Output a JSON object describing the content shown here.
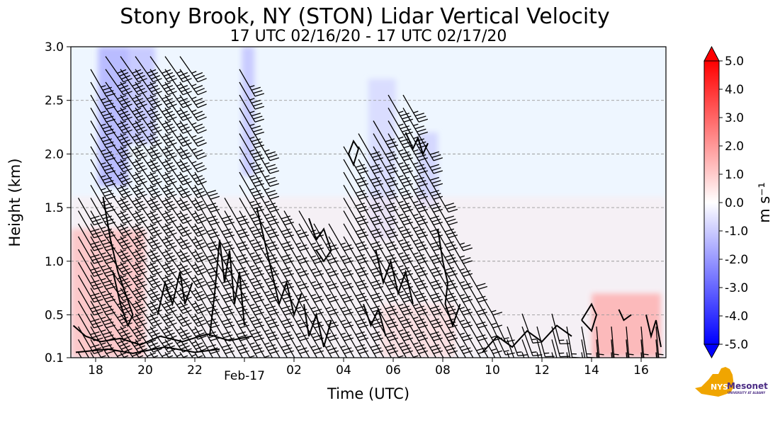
{
  "chart_data": {
    "type": "heatmap",
    "title": "Stony Brook, NY (STON) Lidar Vertical Velocity",
    "subtitle": "17 UTC 02/16/20 - 17 UTC 02/17/20",
    "xlabel": "Time (UTC)",
    "ylabel": "Height (km)",
    "x_range_hours": [
      17,
      41
    ],
    "x_ticks": [
      {
        "hour": 18,
        "label": "18"
      },
      {
        "hour": 20,
        "label": "20"
      },
      {
        "hour": 22,
        "label": "22"
      },
      {
        "hour": 24,
        "label": "Feb-17"
      },
      {
        "hour": 26,
        "label": "02"
      },
      {
        "hour": 28,
        "label": "04"
      },
      {
        "hour": 30,
        "label": "06"
      },
      {
        "hour": 32,
        "label": "08"
      },
      {
        "hour": 34,
        "label": "10"
      },
      {
        "hour": 36,
        "label": "12"
      },
      {
        "hour": 38,
        "label": "14"
      },
      {
        "hour": 40,
        "label": "16"
      }
    ],
    "y_range_km": [
      0.1,
      3.0
    ],
    "y_ticks": [
      {
        "value": 0.1,
        "label": "0.1"
      },
      {
        "value": 0.5,
        "label": "0.5"
      },
      {
        "value": 1.0,
        "label": "1.0"
      },
      {
        "value": 1.5,
        "label": "1.5"
      },
      {
        "value": 2.0,
        "label": "2.0"
      },
      {
        "value": 2.5,
        "label": "2.5"
      },
      {
        "value": 3.0,
        "label": "3.0"
      }
    ],
    "grid": "horizontal dashed",
    "colorbar": {
      "label": "m s⁻¹",
      "range": [
        -5.0,
        5.0
      ],
      "ticks": [
        "5.0",
        "4.0",
        "3.0",
        "2.0",
        "1.0",
        "0.0",
        "-1.0",
        "-2.0",
        "-3.0",
        "-4.0",
        "-5.0"
      ],
      "colors": [
        "#0000ff",
        "#7f7fff",
        "#ffffff",
        "#ff7f7f",
        "#ff0000"
      ]
    },
    "field_regions": [
      {
        "t0": 18.1,
        "t1": 19.3,
        "z0": 1.7,
        "z1": 3.0,
        "w": -0.6
      },
      {
        "t0": 19.2,
        "t1": 20.4,
        "z0": 2.1,
        "z1": 3.0,
        "w": -0.5
      },
      {
        "t0": 23.9,
        "t1": 24.4,
        "z0": 1.8,
        "z1": 3.0,
        "w": -0.5
      },
      {
        "t0": 29.0,
        "t1": 30.1,
        "z0": 1.2,
        "z1": 2.7,
        "w": -0.35
      },
      {
        "t0": 31.0,
        "t1": 31.8,
        "z0": 1.5,
        "z1": 2.2,
        "w": -0.4
      },
      {
        "t0": 17.0,
        "t1": 41.0,
        "z0": 0.1,
        "z1": 1.6,
        "w": 0.15
      },
      {
        "t0": 17.0,
        "t1": 20.0,
        "z0": 0.1,
        "z1": 1.3,
        "w": 0.5
      },
      {
        "t0": 38.0,
        "t1": 40.8,
        "z0": 0.1,
        "z1": 0.7,
        "w": 0.6
      },
      {
        "t0": 29.5,
        "t1": 32.5,
        "z0": 0.1,
        "z1": 0.6,
        "w": 0.3
      }
    ],
    "barb_columns": [
      {
        "t": 17.3,
        "z_top": 1.6,
        "spd": 30,
        "bearing": 150
      },
      {
        "t": 17.8,
        "z_top": 2.9,
        "spd": 35,
        "bearing": 150
      },
      {
        "t": 18.4,
        "z_top": 3.0,
        "spd": 40,
        "bearing": 145
      },
      {
        "t": 19.0,
        "z_top": 3.0,
        "spd": 40,
        "bearing": 145
      },
      {
        "t": 19.6,
        "z_top": 3.0,
        "spd": 40,
        "bearing": 145
      },
      {
        "t": 20.2,
        "z_top": 3.0,
        "spd": 40,
        "bearing": 145
      },
      {
        "t": 20.8,
        "z_top": 3.0,
        "spd": 35,
        "bearing": 145
      },
      {
        "t": 21.4,
        "z_top": 3.0,
        "spd": 35,
        "bearing": 145
      },
      {
        "t": 22.0,
        "z_top": 1.9,
        "spd": 30,
        "bearing": 150
      },
      {
        "t": 22.6,
        "z_top": 1.7,
        "spd": 30,
        "bearing": 150
      },
      {
        "t": 23.2,
        "z_top": 1.7,
        "spd": 30,
        "bearing": 150
      },
      {
        "t": 23.8,
        "z_top": 2.9,
        "spd": 35,
        "bearing": 150
      },
      {
        "t": 24.4,
        "z_top": 2.3,
        "spd": 35,
        "bearing": 150
      },
      {
        "t": 25.0,
        "z_top": 1.6,
        "spd": 30,
        "bearing": 150
      },
      {
        "t": 25.6,
        "z_top": 1.5,
        "spd": 25,
        "bearing": 150
      },
      {
        "t": 26.2,
        "z_top": 1.5,
        "spd": 25,
        "bearing": 150
      },
      {
        "t": 26.8,
        "z_top": 1.4,
        "spd": 25,
        "bearing": 150
      },
      {
        "t": 27.4,
        "z_top": 1.4,
        "spd": 25,
        "bearing": 150
      },
      {
        "t": 28.0,
        "z_top": 2.1,
        "spd": 30,
        "bearing": 150
      },
      {
        "t": 28.6,
        "z_top": 2.3,
        "spd": 30,
        "bearing": 150
      },
      {
        "t": 29.2,
        "z_top": 2.4,
        "spd": 30,
        "bearing": 150
      },
      {
        "t": 29.8,
        "z_top": 2.6,
        "spd": 35,
        "bearing": 150
      },
      {
        "t": 30.4,
        "z_top": 2.6,
        "spd": 35,
        "bearing": 150
      },
      {
        "t": 31.0,
        "z_top": 2.3,
        "spd": 30,
        "bearing": 150
      },
      {
        "t": 31.6,
        "z_top": 1.8,
        "spd": 30,
        "bearing": 150
      },
      {
        "t": 32.2,
        "z_top": 1.4,
        "spd": 25,
        "bearing": 150
      },
      {
        "t": 32.8,
        "z_top": 1.1,
        "spd": 20,
        "bearing": 150
      },
      {
        "t": 33.4,
        "z_top": 0.8,
        "spd": 15,
        "bearing": 150
      },
      {
        "t": 34.0,
        "z_top": 0.6,
        "spd": 15,
        "bearing": 155
      },
      {
        "t": 34.6,
        "z_top": 0.5,
        "spd": 15,
        "bearing": 160
      },
      {
        "t": 35.2,
        "z_top": 0.6,
        "spd": 15,
        "bearing": 160
      },
      {
        "t": 35.8,
        "z_top": 0.5,
        "spd": 15,
        "bearing": 165
      },
      {
        "t": 36.4,
        "z_top": 0.6,
        "spd": 15,
        "bearing": 165
      },
      {
        "t": 37.0,
        "z_top": 0.5,
        "spd": 15,
        "bearing": 170
      },
      {
        "t": 37.6,
        "z_top": 0.5,
        "spd": 15,
        "bearing": 170
      },
      {
        "t": 38.2,
        "z_top": 0.5,
        "spd": 15,
        "bearing": 175
      },
      {
        "t": 38.8,
        "z_top": 0.4,
        "spd": 15,
        "bearing": 175
      },
      {
        "t": 39.4,
        "z_top": 0.4,
        "spd": 15,
        "bearing": 175
      },
      {
        "t": 40.0,
        "z_top": 0.4,
        "spd": 15,
        "bearing": 175
      },
      {
        "t": 40.6,
        "z_top": 0.4,
        "spd": 15,
        "bearing": 175
      }
    ],
    "contours": [
      [
        [
          17.1,
          0.4
        ],
        [
          17.6,
          0.3
        ],
        [
          18.2,
          0.25
        ],
        [
          19.0,
          0.28
        ],
        [
          19.8,
          0.22
        ],
        [
          20.6,
          0.3
        ],
        [
          21.5,
          0.25
        ],
        [
          22.5,
          0.32
        ],
        [
          23.4,
          0.26
        ],
        [
          24.3,
          0.3
        ]
      ],
      [
        [
          17.2,
          0.15
        ],
        [
          18.5,
          0.18
        ],
        [
          19.5,
          0.14
        ],
        [
          20.8,
          0.2
        ],
        [
          22.0,
          0.15
        ],
        [
          23.0,
          0.18
        ]
      ],
      [
        [
          18.3,
          1.6
        ],
        [
          18.6,
          1.2
        ],
        [
          18.9,
          0.9
        ],
        [
          19.2,
          0.7
        ],
        [
          19.5,
          0.5
        ],
        [
          19.3,
          0.4
        ],
        [
          19.0,
          0.6
        ],
        [
          18.7,
          0.9
        ]
      ],
      [
        [
          20.5,
          0.5
        ],
        [
          20.8,
          0.8
        ],
        [
          21.1,
          0.6
        ],
        [
          21.4,
          0.9
        ],
        [
          21.6,
          0.6
        ],
        [
          21.9,
          0.8
        ]
      ],
      [
        [
          22.6,
          0.3
        ],
        [
          22.8,
          0.7
        ],
        [
          23.0,
          1.2
        ],
        [
          23.2,
          0.8
        ],
        [
          23.4,
          1.1
        ],
        [
          23.6,
          0.6
        ],
        [
          23.8,
          0.9
        ],
        [
          24.0,
          0.4
        ]
      ],
      [
        [
          24.5,
          1.5
        ],
        [
          24.8,
          1.2
        ],
        [
          25.1,
          0.9
        ],
        [
          25.4,
          0.6
        ],
        [
          25.7,
          0.8
        ],
        [
          26.0,
          0.5
        ],
        [
          26.3,
          0.7
        ]
      ],
      [
        [
          26.6,
          1.4
        ],
        [
          26.9,
          1.2
        ],
        [
          27.2,
          1.3
        ],
        [
          27.5,
          1.1
        ],
        [
          27.2,
          1.0
        ],
        [
          26.9,
          1.1
        ]
      ],
      [
        [
          28.2,
          2.0
        ],
        [
          28.4,
          1.9
        ],
        [
          28.6,
          2.05
        ],
        [
          28.4,
          2.12
        ],
        [
          28.2,
          2.0
        ]
      ],
      [
        [
          30.5,
          2.2
        ],
        [
          30.8,
          2.05
        ],
        [
          31.0,
          2.15
        ],
        [
          31.2,
          2.0
        ],
        [
          31.4,
          2.1
        ]
      ],
      [
        [
          29.3,
          1.1
        ],
        [
          29.6,
          0.8
        ],
        [
          29.9,
          1.0
        ],
        [
          30.2,
          0.7
        ],
        [
          30.5,
          0.9
        ],
        [
          30.8,
          0.6
        ]
      ],
      [
        [
          31.8,
          1.3
        ],
        [
          32.0,
          1.0
        ],
        [
          32.2,
          0.8
        ],
        [
          32.1,
          0.6
        ],
        [
          32.4,
          0.4
        ],
        [
          32.7,
          0.6
        ]
      ],
      [
        [
          26.4,
          0.6
        ],
        [
          26.6,
          0.3
        ],
        [
          26.9,
          0.5
        ],
        [
          27.2,
          0.2
        ],
        [
          27.5,
          0.45
        ]
      ],
      [
        [
          28.8,
          0.6
        ],
        [
          29.1,
          0.4
        ],
        [
          29.4,
          0.55
        ],
        [
          29.7,
          0.3
        ]
      ],
      [
        [
          33.6,
          0.15
        ],
        [
          34.2,
          0.3
        ],
        [
          34.8,
          0.2
        ],
        [
          35.4,
          0.35
        ],
        [
          36.0,
          0.25
        ],
        [
          36.6,
          0.4
        ],
        [
          37.2,
          0.3
        ]
      ],
      [
        [
          37.6,
          0.45
        ],
        [
          38.0,
          0.6
        ],
        [
          38.2,
          0.5
        ],
        [
          38.0,
          0.35
        ],
        [
          37.6,
          0.45
        ]
      ],
      [
        [
          39.1,
          0.55
        ],
        [
          39.3,
          0.45
        ],
        [
          39.6,
          0.5
        ]
      ],
      [
        [
          40.2,
          0.5
        ],
        [
          40.4,
          0.3
        ],
        [
          40.6,
          0.45
        ],
        [
          40.8,
          0.2
        ]
      ]
    ]
  },
  "logo": {
    "name": "NYS Mesonet",
    "line1": "Mesonet",
    "line2": "UNIVERSITY AT ALBANY"
  }
}
